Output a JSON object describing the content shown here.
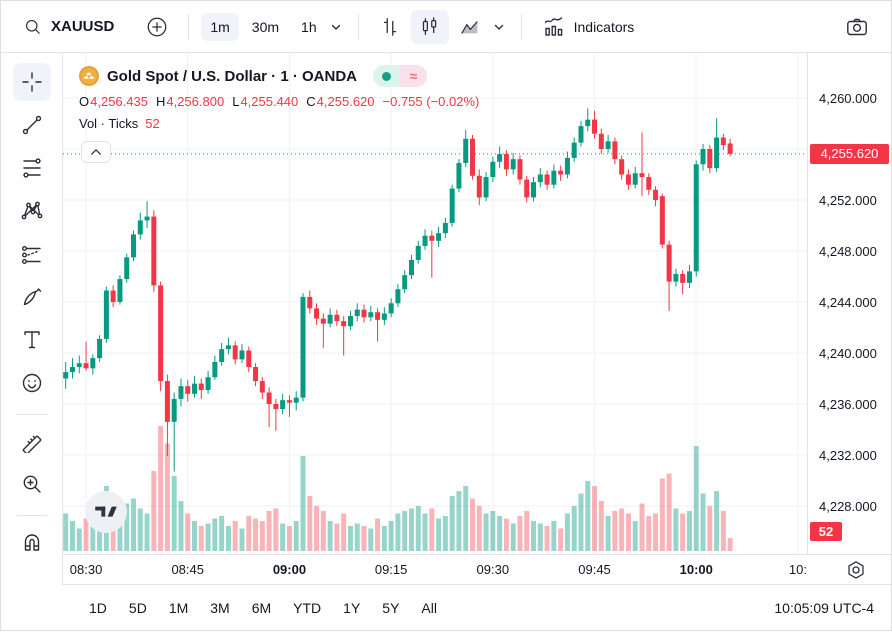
{
  "toolbar_top": {
    "symbol": "XAUUSD",
    "intervals": [
      "1m",
      "30m",
      "1h"
    ],
    "selected_interval": "1m",
    "selected_style": "candles",
    "indicators_label": "Indicators",
    "icons": [
      "search-icon",
      "add-symbol-icon",
      "chevron-down-icon",
      "bars-style-icon",
      "candles-style-icon",
      "area-style-icon",
      "indicators-icon",
      "camera-icon"
    ]
  },
  "left_toolbar": {
    "selected_tool": "crosshair",
    "tools": [
      "crosshair",
      "trend-line",
      "fib-retracement",
      "xabcd-pattern",
      "projection",
      "brush",
      "text",
      "emoji",
      "ruler",
      "zoom-in",
      "magnet"
    ]
  },
  "chart_header": {
    "title": "Gold Spot / U.S. Dollar · 1 · OANDA",
    "symbol_name": "Gold Spot / U.S. Dollar",
    "interval": "1",
    "exchange": "OANDA",
    "status_icons": [
      "market-open-dot",
      "delayed-data-approx"
    ],
    "ohlc": {
      "o_label": "O",
      "o_value": "4,256.435",
      "h_label": "H",
      "h_value": "4,256.800",
      "l_label": "L",
      "l_value": "4,255.440",
      "c_label": "C",
      "c_value": "4,255.620",
      "change": "−0.755 (−0.02%)"
    },
    "volume_row": {
      "label": "Vol · Ticks",
      "value": "52"
    }
  },
  "price_axis_panel": {
    "current_price_label": "4,255.620",
    "current_volume_label": "52"
  },
  "bottom_bar": {
    "ranges": [
      "1D",
      "5D",
      "1M",
      "3M",
      "6M",
      "YTD",
      "1Y",
      "5Y",
      "All"
    ],
    "clock": "10:05:09 UTC-4"
  },
  "colors": {
    "up": "#089981",
    "down": "#f23645",
    "vol_up": "rgba(8,153,129,0.42)",
    "vol_down": "rgba(242,54,69,0.38)",
    "grid": "#f0f2f6",
    "badge": "#f23645",
    "axis_text": "#131722"
  },
  "chart_data": {
    "type": "candlestick",
    "symbol": "XAUUSD",
    "interval": "1m",
    "start_time": "08:27",
    "step_minutes": 1,
    "current_price": 4255.62,
    "current_volume": 52,
    "volume_unit": "ticks",
    "price_axis": {
      "min": 4228,
      "max": 4260,
      "tick_step": 4,
      "ticks": [
        {
          "v": 4260,
          "label": "4,260.000"
        },
        {
          "v": 4256,
          "label": "4,256.000"
        },
        {
          "v": 4252,
          "label": "4,252.000"
        },
        {
          "v": 4248,
          "label": "4,248.000"
        },
        {
          "v": 4244,
          "label": "4,244.000"
        },
        {
          "v": 4240,
          "label": "4,240.000"
        },
        {
          "v": 4236,
          "label": "4,236.000"
        },
        {
          "v": 4232,
          "label": "4,232.000"
        },
        {
          "v": 4228,
          "label": "4,228.000"
        }
      ]
    },
    "time_ticks": [
      {
        "label": "08:30",
        "index": 3,
        "bold": false
      },
      {
        "label": "08:45",
        "index": 18,
        "bold": false
      },
      {
        "label": "09:00",
        "index": 33,
        "bold": true
      },
      {
        "label": "09:15",
        "index": 48,
        "bold": false
      },
      {
        "label": "09:30",
        "index": 63,
        "bold": false
      },
      {
        "label": "09:45",
        "index": 78,
        "bold": false
      },
      {
        "label": "10:00",
        "index": 93,
        "bold": true
      },
      {
        "label": "10:",
        "index": 108,
        "bold": false
      }
    ],
    "candles": [
      [
        4238,
        4239.3,
        4237.2,
        4238.5,
        150
      ],
      [
        4238.5,
        4239.6,
        4238,
        4238.9,
        120
      ],
      [
        4238.9,
        4239.8,
        4238.4,
        4239.2,
        90
      ],
      [
        4239.2,
        4240.9,
        4238.6,
        4238.8,
        130
      ],
      [
        4238.8,
        4239.9,
        4238.3,
        4239.6,
        110
      ],
      [
        4239.6,
        4241.4,
        4239.3,
        4241.1,
        140
      ],
      [
        4241.1,
        4245.2,
        4240.8,
        4244.9,
        260
      ],
      [
        4244.9,
        4245.3,
        4243.6,
        4244,
        180
      ],
      [
        4244,
        4246.1,
        4243.8,
        4245.8,
        170
      ],
      [
        4245.8,
        4247.8,
        4245.5,
        4247.5,
        190
      ],
      [
        4247.5,
        4249.6,
        4247.2,
        4249.3,
        210
      ],
      [
        4249.3,
        4251,
        4248.9,
        4250.4,
        170
      ],
      [
        4250.4,
        4251.9,
        4249.8,
        4250.7,
        150
      ],
      [
        4250.7,
        4251.2,
        4244.8,
        4245.3,
        320
      ],
      [
        4245.3,
        4245.6,
        4237,
        4237.8,
        500
      ],
      [
        4237.8,
        4238.3,
        4231.9,
        4234.6,
        430
      ],
      [
        4234.6,
        4236.9,
        4230.7,
        4236.4,
        300
      ],
      [
        4236.4,
        4238,
        4235.8,
        4237.4,
        200
      ],
      [
        4237.4,
        4237.9,
        4236.2,
        4236.8,
        150
      ],
      [
        4236.8,
        4238.2,
        4236.5,
        4237.6,
        120
      ],
      [
        4237.6,
        4238,
        4236.4,
        4237.1,
        100
      ],
      [
        4237.1,
        4238.6,
        4236.8,
        4238.1,
        110
      ],
      [
        4238.1,
        4239.8,
        4237.9,
        4239.3,
        130
      ],
      [
        4239.3,
        4240.8,
        4239,
        4240.3,
        140
      ],
      [
        4240.3,
        4241.2,
        4239.9,
        4240.6,
        100
      ],
      [
        4240.6,
        4240.9,
        4239.1,
        4239.5,
        120
      ],
      [
        4239.5,
        4240.7,
        4239.2,
        4240.2,
        90
      ],
      [
        4240.2,
        4240.5,
        4238.5,
        4238.9,
        140
      ],
      [
        4238.9,
        4239.2,
        4237.4,
        4237.8,
        130
      ],
      [
        4237.8,
        4238.1,
        4236.4,
        4236.9,
        120
      ],
      [
        4236.9,
        4237.3,
        4234.2,
        4236,
        160
      ],
      [
        4236,
        4236.4,
        4233.9,
        4235.6,
        170
      ],
      [
        4235.6,
        4236.8,
        4235.2,
        4236.3,
        110
      ],
      [
        4236.3,
        4236.7,
        4235,
        4236.1,
        100
      ],
      [
        4236.1,
        4237,
        4235.5,
        4236.5,
        120
      ],
      [
        4236.5,
        4244.7,
        4236.2,
        4244.4,
        380
      ],
      [
        4244.4,
        4244.9,
        4243.1,
        4243.5,
        220
      ],
      [
        4243.5,
        4243.9,
        4242.2,
        4242.7,
        180
      ],
      [
        4242.7,
        4243.1,
        4240.4,
        4242.3,
        160
      ],
      [
        4242.3,
        4243.5,
        4242,
        4243,
        120
      ],
      [
        4243,
        4243.4,
        4242.1,
        4242.5,
        110
      ],
      [
        4242.5,
        4242.9,
        4239.8,
        4242.1,
        150
      ],
      [
        4242.1,
        4243.3,
        4241.8,
        4242.9,
        100
      ],
      [
        4242.9,
        4243.9,
        4242.5,
        4243.4,
        110
      ],
      [
        4243.4,
        4243.8,
        4242.4,
        4242.8,
        100
      ],
      [
        4242.8,
        4243.7,
        4242.5,
        4243.2,
        90
      ],
      [
        4243.2,
        4243.5,
        4240.9,
        4242.6,
        130
      ],
      [
        4242.6,
        4243.6,
        4242.2,
        4243.1,
        100
      ],
      [
        4243.1,
        4244.3,
        4242.8,
        4243.9,
        120
      ],
      [
        4243.9,
        4245.4,
        4243.6,
        4245,
        150
      ],
      [
        4245,
        4246.5,
        4244.7,
        4246.1,
        160
      ],
      [
        4246.1,
        4247.7,
        4245.8,
        4247.3,
        170
      ],
      [
        4247.3,
        4248.8,
        4247,
        4248.4,
        180
      ],
      [
        4248.4,
        4249.7,
        4248.1,
        4249.2,
        150
      ],
      [
        4249.2,
        4249.6,
        4245.9,
        4248.8,
        170
      ],
      [
        4248.8,
        4249.9,
        4248.3,
        4249.4,
        130
      ],
      [
        4249.4,
        4250.6,
        4249,
        4250.2,
        140
      ],
      [
        4250.2,
        4253.2,
        4249.9,
        4252.9,
        220
      ],
      [
        4252.9,
        4255.2,
        4252.6,
        4254.9,
        240
      ],
      [
        4254.9,
        4257.5,
        4254.6,
        4256.8,
        260
      ],
      [
        4256.8,
        4257.1,
        4253.6,
        4253.9,
        210
      ],
      [
        4253.9,
        4254.4,
        4251.6,
        4252.2,
        180
      ],
      [
        4252.2,
        4254.2,
        4251.9,
        4253.8,
        150
      ],
      [
        4253.8,
        4255.4,
        4253.4,
        4255,
        160
      ],
      [
        4255,
        4256.2,
        4254.5,
        4255.6,
        140
      ],
      [
        4255.6,
        4255.9,
        4253.9,
        4254.4,
        130
      ],
      [
        4254.4,
        4255.7,
        4254,
        4255.2,
        110
      ],
      [
        4255.2,
        4255.5,
        4253.2,
        4253.6,
        140
      ],
      [
        4253.6,
        4253.9,
        4251.8,
        4252.2,
        160
      ],
      [
        4252.2,
        4253.8,
        4251.9,
        4253.4,
        120
      ],
      [
        4253.4,
        4254.5,
        4253,
        4254,
        110
      ],
      [
        4254,
        4254.3,
        4252.8,
        4253.2,
        100
      ],
      [
        4253.2,
        4254.8,
        4252.9,
        4254.3,
        120
      ],
      [
        4254.3,
        4254.7,
        4253.5,
        4254,
        90
      ],
      [
        4254,
        4255.8,
        4253.7,
        4255.3,
        150
      ],
      [
        4255.3,
        4256.9,
        4255,
        4256.5,
        180
      ],
      [
        4256.5,
        4258.2,
        4256.2,
        4257.8,
        230
      ],
      [
        4257.8,
        4259.2,
        4257.4,
        4258.3,
        280
      ],
      [
        4258.3,
        4259,
        4256.8,
        4257.2,
        260
      ],
      [
        4257.2,
        4257.6,
        4255.6,
        4256,
        200
      ],
      [
        4256,
        4257.1,
        4255.7,
        4256.6,
        140
      ],
      [
        4256.6,
        4256.9,
        4254.8,
        4255.2,
        160
      ],
      [
        4255.2,
        4255.5,
        4253.6,
        4254,
        170
      ],
      [
        4254,
        4254.4,
        4252.8,
        4253.2,
        150
      ],
      [
        4253.2,
        4254.6,
        4252.9,
        4254.1,
        120
      ],
      [
        4254.1,
        4257.3,
        4252.3,
        4253.8,
        190
      ],
      [
        4253.8,
        4254.1,
        4252.4,
        4252.8,
        140
      ],
      [
        4252.8,
        4253.1,
        4251.5,
        4252,
        150
      ],
      [
        4252.3,
        4252.5,
        4248.2,
        4248.5,
        290
      ],
      [
        4248.5,
        4248.8,
        4243.3,
        4245.6,
        310
      ],
      [
        4245.6,
        4246.6,
        4245.2,
        4246.2,
        170
      ],
      [
        4246.2,
        4246.5,
        4244.6,
        4245.5,
        150
      ],
      [
        4245.5,
        4246.9,
        4245.1,
        4246.4,
        160
      ],
      [
        4246.4,
        4255.1,
        4246,
        4254.8,
        420
      ],
      [
        4254.8,
        4256.4,
        4254.3,
        4256,
        230
      ],
      [
        4256,
        4256.3,
        4254.1,
        4254.5,
        180
      ],
      [
        4254.5,
        4258.4,
        4254.2,
        4256.9,
        240
      ],
      [
        4256.9,
        4257.2,
        4255.9,
        4256.3,
        160
      ],
      [
        4256.435,
        4256.8,
        4255.44,
        4255.62,
        52
      ]
    ]
  }
}
